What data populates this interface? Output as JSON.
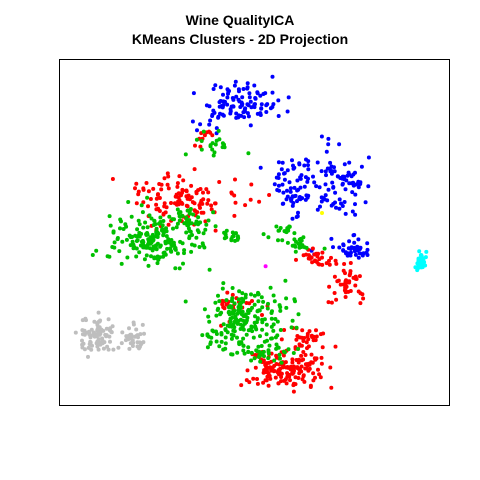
{
  "chart_data": {
    "type": "scatter",
    "title": "Wine QualityICA",
    "subtitle": "KMeans Clusters - 2D Projection",
    "xlabel": "",
    "ylabel": "",
    "grid": false,
    "legend": "none",
    "xlim": [
      0,
      100
    ],
    "ylim": [
      0,
      100
    ],
    "series": [
      {
        "color": "#0000ff",
        "blobs": [
          {
            "cx": 47,
            "cy": 89,
            "sx": 5.0,
            "sy": 3.2,
            "n": 95
          },
          {
            "cx": 39,
            "cy": 85,
            "sx": 2.2,
            "sy": 2.0,
            "n": 18
          },
          {
            "cx": 60,
            "cy": 64,
            "sx": 3.4,
            "sy": 4.0,
            "n": 70
          },
          {
            "cx": 72,
            "cy": 65,
            "sx": 3.8,
            "sy": 5.0,
            "n": 85
          },
          {
            "cx": 76,
            "cy": 45,
            "sx": 2.6,
            "sy": 1.6,
            "n": 42
          },
          {
            "cx": 65,
            "cy": 44,
            "sx": 0.7,
            "sy": 0.7,
            "n": 3
          }
        ]
      },
      {
        "color": "#ff0000",
        "blobs": [
          {
            "cx": 32,
            "cy": 59,
            "sx": 7.5,
            "sy": 4.2,
            "n": 110
          },
          {
            "cx": 23,
            "cy": 63,
            "sx": 2.2,
            "sy": 2.5,
            "n": 14
          },
          {
            "cx": 37,
            "cy": 79,
            "sx": 1.3,
            "sy": 1.4,
            "n": 10
          },
          {
            "cx": 58,
            "cy": 9,
            "sx": 5.2,
            "sy": 2.8,
            "n": 150
          },
          {
            "cx": 64,
            "cy": 18,
            "sx": 3.0,
            "sy": 2.0,
            "n": 35
          },
          {
            "cx": 66,
            "cy": 42,
            "sx": 2.5,
            "sy": 1.5,
            "n": 28
          },
          {
            "cx": 75,
            "cy": 35,
            "sx": 2.5,
            "sy": 2.5,
            "n": 45
          },
          {
            "cx": 46,
            "cy": 27,
            "sx": 3.5,
            "sy": 3.0,
            "n": 25
          }
        ]
      },
      {
        "color": "#00c000",
        "blobs": [
          {
            "cx": 23,
            "cy": 48,
            "sx": 6.5,
            "sy": 4.0,
            "n": 200
          },
          {
            "cx": 32,
            "cy": 54,
            "sx": 2.5,
            "sy": 2.5,
            "n": 30
          },
          {
            "cx": 44,
            "cy": 49,
            "sx": 1.3,
            "sy": 1.0,
            "n": 16
          },
          {
            "cx": 39,
            "cy": 76,
            "sx": 3.0,
            "sy": 1.6,
            "n": 20
          },
          {
            "cx": 49,
            "cy": 25,
            "sx": 5.5,
            "sy": 4.0,
            "n": 160
          },
          {
            "cx": 43,
            "cy": 18,
            "sx": 3.5,
            "sy": 3.0,
            "n": 40
          },
          {
            "cx": 53,
            "cy": 14,
            "sx": 4.0,
            "sy": 1.5,
            "n": 40
          },
          {
            "cx": 62,
            "cy": 47,
            "sx": 2.5,
            "sy": 1.5,
            "n": 25
          },
          {
            "cx": 58,
            "cy": 51,
            "sx": 1.5,
            "sy": 1.0,
            "n": 12
          },
          {
            "cx": 53,
            "cy": 49,
            "sx": 0.6,
            "sy": 0.6,
            "n": 2
          }
        ]
      },
      {
        "color": "#bebebe",
        "blobs": [
          {
            "cx": 8,
            "cy": 19,
            "sx": 2.2,
            "sy": 2.8,
            "n": 85
          },
          {
            "cx": 18,
            "cy": 18,
            "sx": 1.5,
            "sy": 2.0,
            "n": 40
          }
        ]
      },
      {
        "color": "#00ffff",
        "blobs": [
          {
            "cx": 94,
            "cy": 41,
            "sx": 0.8,
            "sy": 1.4,
            "n": 28
          }
        ]
      },
      {
        "color": "#ffff00",
        "blobs": [
          {
            "cx": 68,
            "cy": 56,
            "sx": 0.1,
            "sy": 0.1,
            "n": 1
          }
        ]
      },
      {
        "color": "#ff00ff",
        "blobs": [
          {
            "cx": 53,
            "cy": 40,
            "sx": 0.1,
            "sy": 0.1,
            "n": 1
          }
        ]
      }
    ]
  }
}
